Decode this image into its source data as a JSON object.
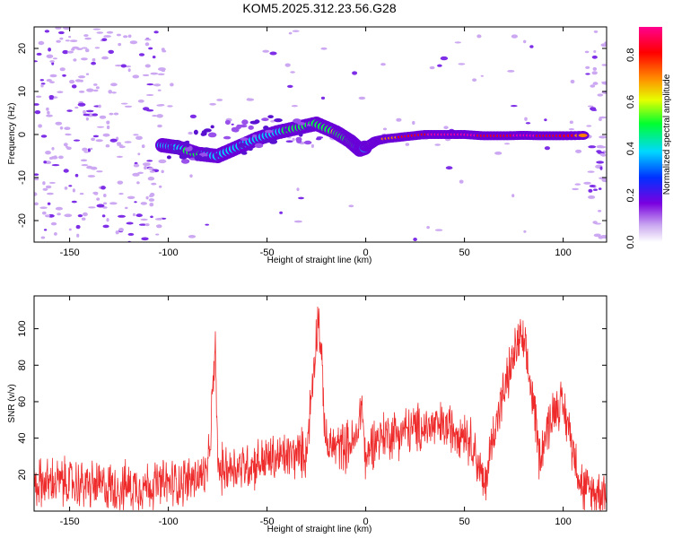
{
  "title": "KOM5.2025.312.23.56.G28",
  "colors": {
    "snr_line": "#ee2a2a",
    "blob_core": "#6a00d8",
    "blob_halo": "#c9a6f0"
  },
  "chart_data": [
    {
      "type": "heatmap",
      "name": "spectrogram",
      "xlabel": "Height of straight line (km)",
      "ylabel": "Frequency (Hz)",
      "xlim": [
        -168,
        122
      ],
      "ylim": [
        -25,
        25
      ],
      "xticks": [
        -150,
        -100,
        -50,
        0,
        50,
        100
      ],
      "yticks": [
        -20,
        -10,
        0,
        10,
        20
      ],
      "colorbar": {
        "label": "Normalized spectral amplitude",
        "range": [
          0,
          0.92
        ],
        "ticks": [
          0.0,
          0.2,
          0.4,
          0.6,
          0.8
        ],
        "tick_labels": [
          "0.0",
          "0.2",
          "0.4",
          "0.6",
          "0.8"
        ]
      },
      "doppler_trace": {
        "x": [
          -103,
          -95,
          -85,
          -75,
          -65,
          -55,
          -45,
          -35,
          -25,
          -15,
          -8,
          -3,
          0,
          5,
          10,
          20,
          30,
          40,
          50,
          60,
          70,
          80,
          90,
          100,
          112
        ],
        "y": [
          -2.5,
          -3,
          -4.5,
          -5,
          -3,
          -1,
          0.5,
          1.5,
          2.5,
          0.5,
          -1.5,
          -3.5,
          -3,
          -1.5,
          -1,
          -0.5,
          0,
          0,
          0,
          -0.3,
          -0.3,
          -0.2,
          -0.3,
          -0.3,
          -0.2
        ],
        "amplitude": [
          0.3,
          0.35,
          0.4,
          0.3,
          0.25,
          0.3,
          0.35,
          0.4,
          0.45,
          0.5,
          0.45,
          0.35,
          0.3,
          0.6,
          0.7,
          0.75,
          0.85,
          0.9,
          0.9,
          0.85,
          0.8,
          0.9,
          0.85,
          0.8,
          0.7
        ]
      }
    },
    {
      "type": "line",
      "name": "snr",
      "xlabel": "Height of straight line (km)",
      "ylabel": "SNR (v/v)",
      "xlim": [
        -168,
        122
      ],
      "ylim": [
        0,
        118
      ],
      "xticks": [
        -150,
        -100,
        -50,
        0,
        50,
        100
      ],
      "yticks": [
        20,
        40,
        60,
        80,
        100
      ],
      "series": [
        {
          "name": "SNR",
          "x": [
            -168,
            -155,
            -140,
            -125,
            -110,
            -100,
            -90,
            -80,
            -76,
            -75,
            -70,
            -60,
            -50,
            -40,
            -30,
            -24,
            -20,
            -10,
            -5,
            -2,
            0,
            3,
            10,
            20,
            30,
            40,
            50,
            55,
            60,
            65,
            70,
            75,
            78,
            80,
            85,
            88,
            92,
            95,
            98,
            102,
            106,
            110,
            115,
            122
          ],
          "y": [
            15,
            16,
            14,
            13,
            14,
            15,
            17,
            20,
            90,
            22,
            24,
            25,
            28,
            30,
            32,
            110,
            35,
            36,
            38,
            60,
            25,
            38,
            42,
            44,
            46,
            46,
            44,
            35,
            12,
            45,
            65,
            85,
            95,
            90,
            60,
            30,
            45,
            55,
            60,
            50,
            30,
            12,
            10,
            12
          ],
          "noise_amplitude": 14
        }
      ]
    }
  ]
}
